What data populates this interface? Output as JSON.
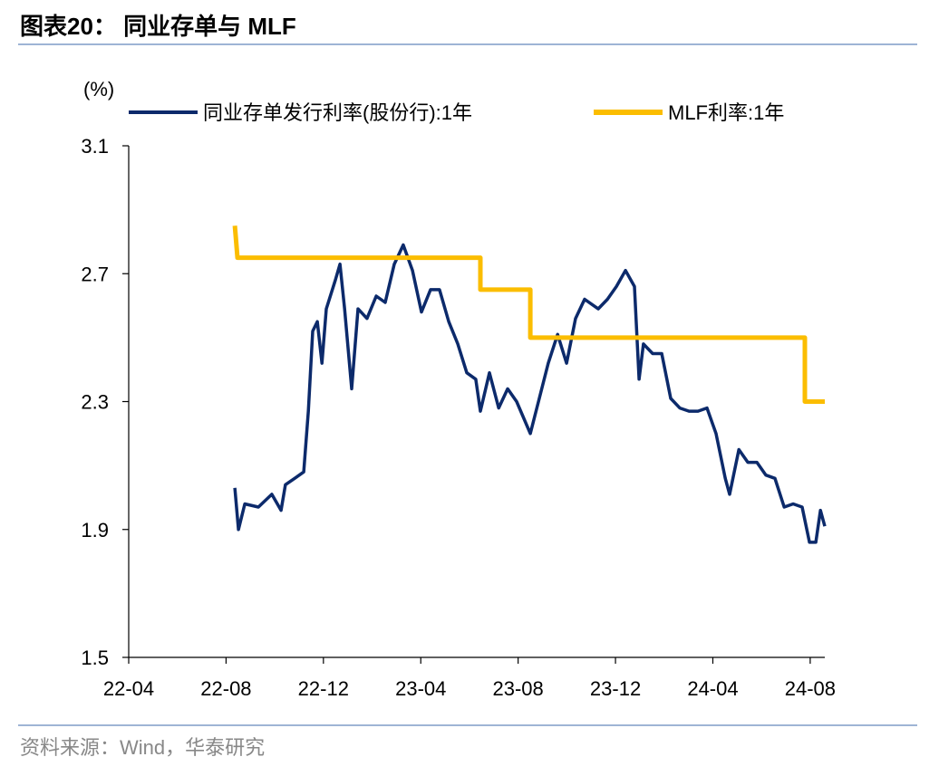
{
  "chart_data": {
    "type": "line",
    "title": "图表20： 同业存单与 MLF",
    "source": "资料来源：Wind，华泰研究",
    "ylabel": "(%)",
    "xlim": [
      0,
      28.6
    ],
    "xticks": [
      {
        "value": 0,
        "label": "22-04"
      },
      {
        "value": 4,
        "label": "22-08"
      },
      {
        "value": 8,
        "label": "22-12"
      },
      {
        "value": 12,
        "label": "23-04"
      },
      {
        "value": 16,
        "label": "23-08"
      },
      {
        "value": 20,
        "label": "23-12"
      },
      {
        "value": 24,
        "label": "24-04"
      },
      {
        "value": 28,
        "label": "24-08"
      }
    ],
    "ylim": [
      1.5,
      3.1
    ],
    "yticks": [
      1.5,
      1.9,
      2.3,
      2.7,
      3.1
    ],
    "grid": false,
    "legend": "top",
    "series": [
      {
        "name": "同业存单发行利率(股份行):1年",
        "color": "#0c2a6b",
        "x": [
          4.36,
          4.51,
          4.77,
          5.33,
          5.88,
          6.26,
          6.44,
          6.82,
          7.19,
          7.38,
          7.56,
          7.75,
          7.94,
          8.12,
          8.49,
          8.68,
          8.87,
          9.16,
          9.42,
          9.79,
          10.17,
          10.54,
          10.91,
          11.28,
          11.66,
          12.03,
          12.4,
          12.77,
          13.15,
          13.52,
          13.89,
          14.26,
          14.45,
          14.82,
          15.2,
          15.57,
          15.94,
          16.5,
          16.87,
          17.24,
          17.62,
          17.99,
          18.36,
          18.73,
          19.29,
          19.67,
          20.04,
          20.41,
          20.78,
          20.97,
          21.15,
          21.53,
          21.9,
          22.27,
          22.64,
          23.02,
          23.39,
          23.76,
          24.13,
          24.51,
          24.69,
          25.07,
          25.44,
          25.81,
          26.18,
          26.55,
          26.93,
          27.3,
          27.67,
          27.97,
          28.23,
          28.42,
          28.6
        ],
        "values": [
          2.03,
          1.9,
          1.98,
          1.97,
          2.01,
          1.96,
          2.04,
          2.06,
          2.08,
          2.27,
          2.52,
          2.55,
          2.42,
          2.59,
          2.68,
          2.73,
          2.59,
          2.34,
          2.59,
          2.56,
          2.63,
          2.61,
          2.73,
          2.79,
          2.71,
          2.58,
          2.65,
          2.65,
          2.55,
          2.48,
          2.39,
          2.37,
          2.27,
          2.39,
          2.28,
          2.34,
          2.3,
          2.2,
          2.31,
          2.42,
          2.51,
          2.42,
          2.56,
          2.62,
          2.59,
          2.62,
          2.66,
          2.71,
          2.66,
          2.37,
          2.48,
          2.45,
          2.45,
          2.31,
          2.28,
          2.27,
          2.27,
          2.28,
          2.2,
          2.06,
          2.01,
          2.15,
          2.11,
          2.11,
          2.07,
          2.06,
          1.97,
          1.98,
          1.97,
          1.86,
          1.86,
          1.96,
          1.91
        ]
      },
      {
        "name": "MLF利率:1年",
        "color": "#fbbd00",
        "x": [
          4.36,
          4.47,
          14.45,
          14.45,
          16.5,
          16.5,
          27.78,
          27.78,
          28.6
        ],
        "values": [
          2.85,
          2.75,
          2.75,
          2.65,
          2.65,
          2.5,
          2.5,
          2.3,
          2.3
        ]
      }
    ]
  }
}
